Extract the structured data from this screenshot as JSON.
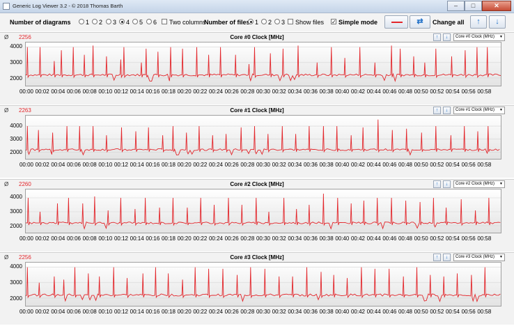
{
  "window": {
    "title": "Generic Log Viewer 3.2 - © 2018 Thomas Barth",
    "minimize": "–",
    "maximize": "□",
    "close": "✕"
  },
  "toolbar": {
    "diagrams_label": "Number of diagrams",
    "diagram_options": [
      "1",
      "2",
      "3",
      "4",
      "5",
      "6"
    ],
    "diagram_selected": "4",
    "two_columns_label": "Two columns",
    "files_label": "Number of files",
    "file_options": [
      "1",
      "2",
      "3"
    ],
    "file_selected": "1",
    "show_files_label": "Show files",
    "simple_mode_label": "Simple mode",
    "simple_mode_checked": true,
    "change_all_label": "Change all",
    "line_color": "#e3262b",
    "swap_icon": "refresh-icon",
    "up_icon": "arrow-up-icon",
    "down_icon": "arrow-down-icon",
    "up_glyph": "↑",
    "down_glyph": "↓",
    "swap_glyph": "⇄"
  },
  "panels": [
    {
      "avg_symbol": "Ø",
      "avg_value": "2256",
      "title": "Core #0 Clock [MHz]",
      "selector": "Core #0 Clock (MHz)"
    },
    {
      "avg_symbol": "Ø",
      "avg_value": "2263",
      "title": "Core #1 Clock [MHz]",
      "selector": "Core #1 Clock (MHz)"
    },
    {
      "avg_symbol": "Ø",
      "avg_value": "2260",
      "title": "Core #2 Clock [MHz]",
      "selector": "Core #2 Clock (MHz)"
    },
    {
      "avg_symbol": "Ø",
      "avg_value": "2256",
      "title": "Core #3 Clock [MHz]",
      "selector": "Core #3 Clock (MHz)"
    }
  ],
  "chart_data": [
    {
      "type": "line",
      "title": "Core #0 Clock [MHz]",
      "ylim": [
        1500,
        4300
      ],
      "yticks": [
        2000,
        3000,
        4000
      ],
      "x_ticks": [
        "00:00",
        "00:02",
        "00:04",
        "00:06",
        "00:08",
        "00:10",
        "00:12",
        "00:14",
        "00:16",
        "00:18",
        "00:20",
        "00:22",
        "00:24",
        "00:26",
        "00:28",
        "00:30",
        "00:32",
        "00:34",
        "00:36",
        "00:38",
        "00:40",
        "00:42",
        "00:44",
        "00:46",
        "00:48",
        "00:50",
        "00:52",
        "00:54",
        "00:56",
        "00:58"
      ],
      "series": [
        {
          "color": "#e3262b",
          "baseline": 2200,
          "spikes": [
            [
              0.2,
              4000
            ],
            [
              1.8,
              4000
            ],
            [
              3.6,
              3100
            ],
            [
              4.5,
              3800
            ],
            [
              6.0,
              4000
            ],
            [
              7.4,
              3500
            ],
            [
              8.5,
              4100
            ],
            [
              10.2,
              3400
            ],
            [
              12.0,
              3200
            ],
            [
              12.4,
              4000
            ],
            [
              14.6,
              3000
            ],
            [
              15.2,
              3900
            ],
            [
              16.7,
              3700
            ],
            [
              18.3,
              4000
            ],
            [
              19.8,
              3900
            ],
            [
              21.6,
              4000
            ],
            [
              23.1,
              3500
            ],
            [
              24.6,
              4000
            ],
            [
              26.5,
              3500
            ],
            [
              28.2,
              2900
            ],
            [
              28.9,
              4000
            ],
            [
              30.9,
              3600
            ],
            [
              32.5,
              3900
            ],
            [
              34.4,
              4100
            ],
            [
              36.8,
              3000
            ],
            [
              38.6,
              4000
            ],
            [
              40.3,
              3300
            ],
            [
              42.2,
              4000
            ],
            [
              44.1,
              3000
            ],
            [
              46.2,
              4100
            ],
            [
              47.3,
              3900
            ],
            [
              49.0,
              3400
            ],
            [
              50.4,
              3000
            ],
            [
              51.8,
              3900
            ],
            [
              53.8,
              3400
            ],
            [
              55.5,
              3800
            ],
            [
              57.0,
              4000
            ],
            [
              58.3,
              4000
            ]
          ]
        }
      ]
    },
    {
      "type": "line",
      "title": "Core #1 Clock [MHz]",
      "ylim": [
        1500,
        4800
      ],
      "yticks": [
        2000,
        3000,
        4000
      ],
      "x_ticks": [
        "00:00",
        "00:02",
        "00:04",
        "00:06",
        "00:08",
        "00:10",
        "00:12",
        "00:14",
        "00:16",
        "00:18",
        "00:20",
        "00:22",
        "00:24",
        "00:26",
        "00:28",
        "00:30",
        "00:32",
        "00:34",
        "00:36",
        "00:38",
        "00:40",
        "00:42",
        "00:44",
        "00:46",
        "00:48",
        "00:50",
        "00:52",
        "00:54",
        "00:56",
        "00:58"
      ],
      "series": [
        {
          "color": "#e3262b",
          "baseline": 2200,
          "spikes": [
            [
              0.2,
              4000
            ],
            [
              1.6,
              3700
            ],
            [
              3.4,
              3500
            ],
            [
              5.2,
              4000
            ],
            [
              6.8,
              4000
            ],
            [
              8.5,
              4000
            ],
            [
              10.2,
              3300
            ],
            [
              12.1,
              3900
            ],
            [
              13.9,
              3600
            ],
            [
              15.5,
              3900
            ],
            [
              17.3,
              3300
            ],
            [
              18.6,
              4000
            ],
            [
              20.3,
              3500
            ],
            [
              21.9,
              4000
            ],
            [
              23.6,
              3300
            ],
            [
              25.3,
              3400
            ],
            [
              27.2,
              3900
            ],
            [
              28.9,
              4000
            ],
            [
              30.6,
              3400
            ],
            [
              32.4,
              4000
            ],
            [
              34.1,
              3400
            ],
            [
              35.8,
              4000
            ],
            [
              37.6,
              4000
            ],
            [
              39.3,
              4000
            ],
            [
              41.1,
              3300
            ],
            [
              42.6,
              3900
            ],
            [
              44.5,
              4500
            ],
            [
              46.3,
              3700
            ],
            [
              48.1,
              3800
            ],
            [
              50.0,
              3500
            ],
            [
              51.8,
              4000
            ],
            [
              53.7,
              3300
            ],
            [
              55.4,
              4000
            ],
            [
              57.1,
              3600
            ],
            [
              58.4,
              4000
            ]
          ]
        }
      ]
    },
    {
      "type": "line",
      "title": "Core #2 Clock [MHz]",
      "ylim": [
        1500,
        4600
      ],
      "yticks": [
        2000,
        3000,
        4000
      ],
      "x_ticks": [
        "00:00",
        "00:02",
        "00:04",
        "00:06",
        "00:08",
        "00:10",
        "00:12",
        "00:14",
        "00:16",
        "00:18",
        "00:20",
        "00:22",
        "00:24",
        "00:26",
        "00:28",
        "00:30",
        "00:32",
        "00:34",
        "00:36",
        "00:38",
        "00:40",
        "00:42",
        "00:44",
        "00:46",
        "00:48",
        "00:50",
        "00:52",
        "00:54",
        "00:56",
        "00:58"
      ],
      "series": [
        {
          "color": "#e3262b",
          "baseline": 2200,
          "spikes": [
            [
              0.3,
              4000
            ],
            [
              1.8,
              3000
            ],
            [
              4.0,
              3600
            ],
            [
              5.4,
              4000
            ],
            [
              7.2,
              3600
            ],
            [
              8.7,
              4100
            ],
            [
              10.4,
              3100
            ],
            [
              12.0,
              4000
            ],
            [
              13.8,
              3200
            ],
            [
              15.1,
              4000
            ],
            [
              16.9,
              3300
            ],
            [
              18.6,
              4000
            ],
            [
              20.4,
              3300
            ],
            [
              22.1,
              4000
            ],
            [
              23.8,
              3500
            ],
            [
              25.6,
              4000
            ],
            [
              27.3,
              3500
            ],
            [
              29.1,
              4000
            ],
            [
              30.7,
              3000
            ],
            [
              32.6,
              4000
            ],
            [
              34.2,
              3200
            ],
            [
              35.8,
              3500
            ],
            [
              37.6,
              4300
            ],
            [
              39.4,
              4000
            ],
            [
              41.1,
              3600
            ],
            [
              42.7,
              3800
            ],
            [
              44.4,
              4000
            ],
            [
              46.2,
              4000
            ],
            [
              48.0,
              3800
            ],
            [
              49.8,
              3700
            ],
            [
              51.5,
              4000
            ],
            [
              53.1,
              3300
            ],
            [
              55.0,
              3900
            ],
            [
              56.8,
              3100
            ],
            [
              58.5,
              4000
            ]
          ]
        }
      ]
    },
    {
      "type": "line",
      "title": "Core #3 Clock [MHz]",
      "ylim": [
        1500,
        4300
      ],
      "yticks": [
        2000,
        3000,
        4000
      ],
      "x_ticks": [
        "00:00",
        "00:02",
        "00:04",
        "00:06",
        "00:08",
        "00:10",
        "00:12",
        "00:14",
        "00:16",
        "00:18",
        "00:20",
        "00:22",
        "00:24",
        "00:26",
        "00:28",
        "00:30",
        "00:32",
        "00:34",
        "00:36",
        "00:38",
        "00:40",
        "00:42",
        "00:44",
        "00:46",
        "00:48",
        "00:50",
        "00:52",
        "00:54",
        "00:56",
        "00:58"
      ],
      "series": [
        {
          "color": "#e3262b",
          "baseline": 2200,
          "spikes": [
            [
              0.2,
              4000
            ],
            [
              1.7,
              3000
            ],
            [
              3.6,
              3400
            ],
            [
              4.8,
              3200
            ],
            [
              6.2,
              4000
            ],
            [
              7.9,
              3600
            ],
            [
              9.3,
              3400
            ],
            [
              11.1,
              4000
            ],
            [
              12.8,
              3300
            ],
            [
              14.8,
              3600
            ],
            [
              16.4,
              4000
            ],
            [
              18.0,
              3600
            ],
            [
              19.8,
              3200
            ],
            [
              21.4,
              4000
            ],
            [
              23.1,
              3900
            ],
            [
              24.9,
              3900
            ],
            [
              26.7,
              3500
            ],
            [
              28.4,
              4000
            ],
            [
              30.2,
              3900
            ],
            [
              32.0,
              3400
            ],
            [
              33.7,
              3400
            ],
            [
              35.5,
              4000
            ],
            [
              37.3,
              3700
            ],
            [
              38.9,
              3500
            ],
            [
              40.6,
              3300
            ],
            [
              42.4,
              4000
            ],
            [
              44.1,
              3900
            ],
            [
              45.9,
              3900
            ],
            [
              47.7,
              3400
            ],
            [
              49.4,
              4000
            ],
            [
              51.1,
              3500
            ],
            [
              52.8,
              3400
            ],
            [
              54.5,
              3600
            ],
            [
              56.3,
              3500
            ],
            [
              58.0,
              4000
            ]
          ]
        }
      ]
    }
  ]
}
